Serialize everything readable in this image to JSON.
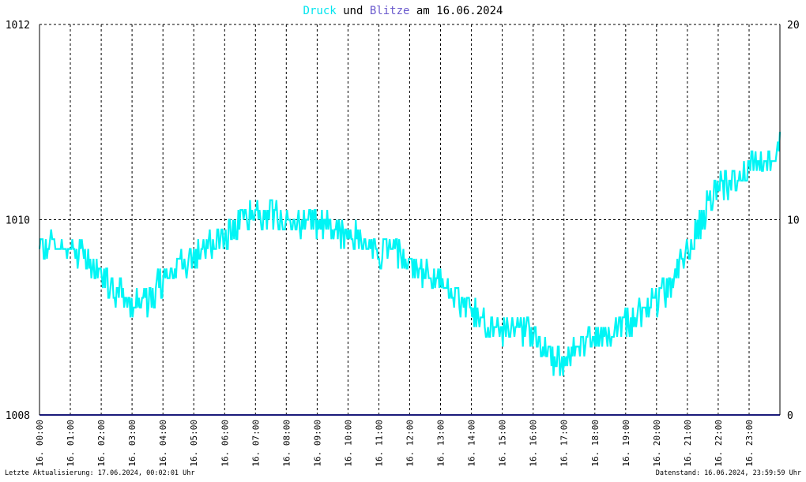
{
  "chart_data": {
    "type": "line",
    "title": {
      "parts": [
        {
          "text": "Druck",
          "color": "#00e5ee"
        },
        {
          "text": " und ",
          "color": "#000000"
        },
        {
          "text": "Blitze",
          "color": "#6a5acd"
        },
        {
          "text": " am 16.06.2024",
          "color": "#000000"
        }
      ]
    },
    "y_left": {
      "min": 1008,
      "max": 1012,
      "ticks": [
        "1008",
        "1010",
        "1012"
      ]
    },
    "y_right": {
      "min": 0,
      "max": 20,
      "ticks": [
        "0",
        "10",
        "20"
      ]
    },
    "x_ticks": [
      "16. 00:00",
      "16. 01:00",
      "16. 02:00",
      "16. 03:00",
      "16. 04:00",
      "16. 05:00",
      "16. 06:00",
      "16. 07:00",
      "16. 08:00",
      "16. 09:00",
      "16. 10:00",
      "16. 11:00",
      "16. 12:00",
      "16. 13:00",
      "16. 14:00",
      "16. 15:00",
      "16. 16:00",
      "16. 17:00",
      "16. 18:00",
      "16. 19:00",
      "16. 20:00",
      "16. 21:00",
      "16. 22:00",
      "16. 23:00"
    ],
    "grid": true,
    "series": [
      {
        "name": "Druck",
        "color": "#00f5f5",
        "axis": "left",
        "x_hours": [
          0,
          0.5,
          1,
          1.5,
          2,
          2.5,
          3,
          3.5,
          4,
          4.5,
          5,
          5.5,
          6,
          6.5,
          7,
          7.5,
          8,
          8.5,
          9,
          9.5,
          10,
          10.5,
          11,
          11.5,
          12,
          12.5,
          13,
          13.5,
          14,
          14.5,
          15,
          15.5,
          16,
          16.5,
          17,
          17.5,
          18,
          18.5,
          19,
          19.5,
          20,
          20.5,
          21,
          21.5,
          22,
          22.5,
          23,
          23.5,
          24
        ],
        "values": [
          1009.7,
          1009.75,
          1009.75,
          1009.6,
          1009.4,
          1009.25,
          1009.15,
          1009.2,
          1009.35,
          1009.5,
          1009.65,
          1009.75,
          1009.85,
          1009.95,
          1010.05,
          1010.05,
          1009.95,
          1009.95,
          1010.0,
          1009.95,
          1009.85,
          1009.75,
          1009.7,
          1009.65,
          1009.55,
          1009.45,
          1009.35,
          1009.2,
          1009.05,
          1008.95,
          1008.9,
          1008.9,
          1008.8,
          1008.65,
          1008.5,
          1008.7,
          1008.8,
          1008.85,
          1008.95,
          1009.05,
          1009.15,
          1009.35,
          1009.7,
          1010.05,
          1010.3,
          1010.4,
          1010.55,
          1010.6,
          1010.75
        ]
      },
      {
        "name": "Blitze",
        "color": "#1a1a7a",
        "axis": "right",
        "x_hours": [
          0,
          24
        ],
        "values": [
          0,
          0
        ]
      }
    ]
  },
  "footer": {
    "left": "Letzte Aktualisierung: 17.06.2024, 00:02:01 Uhr",
    "right": "Datenstand: 16.06.2024, 23:59:59 Uhr"
  }
}
